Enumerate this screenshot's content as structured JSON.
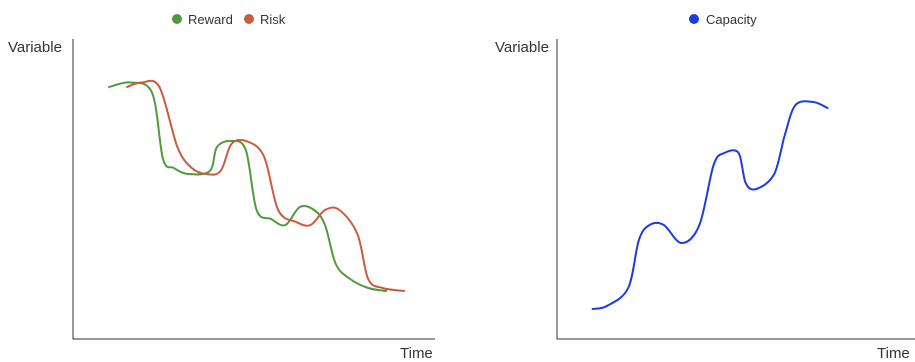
{
  "chart_data": [
    {
      "type": "line",
      "xlabel": "Time",
      "ylabel": "Variable",
      "legend": "top",
      "grid": false,
      "xlim": [
        0,
        100
      ],
      "ylim": [
        0,
        100
      ],
      "series": [
        {
          "name": "Reward",
          "color": "#4e9b3d",
          "points": [
            [
              10,
              84
            ],
            [
              16,
              85.5
            ],
            [
              22,
              82
            ],
            [
              25,
              60
            ],
            [
              28,
              57
            ],
            [
              32,
              55
            ],
            [
              38,
              56
            ],
            [
              40,
              64
            ],
            [
              44,
              66
            ],
            [
              48,
              63
            ],
            [
              51,
              43
            ],
            [
              55,
              40
            ],
            [
              59,
              38
            ],
            [
              63,
              44
            ],
            [
              67,
              43
            ],
            [
              70,
              38
            ],
            [
              73,
              25
            ],
            [
              77,
              20
            ],
            [
              82,
              17
            ],
            [
              87,
              16
            ]
          ]
        },
        {
          "name": "Risk",
          "color": "#cc5a40",
          "points": [
            [
              15,
              84
            ],
            [
              19,
              85.5
            ],
            [
              24,
              84
            ],
            [
              29,
              64
            ],
            [
              33,
              57
            ],
            [
              37,
              55
            ],
            [
              41,
              56
            ],
            [
              44,
              65
            ],
            [
              48,
              66
            ],
            [
              53,
              61
            ],
            [
              57,
              43
            ],
            [
              62,
              39
            ],
            [
              66,
              38
            ],
            [
              70,
              43
            ],
            [
              74,
              43
            ],
            [
              79,
              35
            ],
            [
              82,
              20
            ],
            [
              86,
              17
            ],
            [
              92,
              16
            ]
          ]
        }
      ]
    },
    {
      "type": "line",
      "xlabel": "Time",
      "ylabel": "Variable",
      "legend": "top",
      "grid": false,
      "xlim": [
        0,
        100
      ],
      "ylim": [
        0,
        100
      ],
      "series": [
        {
          "name": "Capacity",
          "color": "#1c3be6",
          "points": [
            [
              10,
              10
            ],
            [
              14,
              11
            ],
            [
              20,
              17
            ],
            [
              23,
              33
            ],
            [
              26,
              38
            ],
            [
              30,
              38
            ],
            [
              35,
              32
            ],
            [
              40,
              38
            ],
            [
              44,
              58
            ],
            [
              47,
              62
            ],
            [
              51,
              62
            ],
            [
              53,
              52
            ],
            [
              56,
              50
            ],
            [
              61,
              55
            ],
            [
              64,
              68
            ],
            [
              67,
              78
            ],
            [
              72,
              79
            ],
            [
              76,
              77
            ]
          ]
        }
      ]
    }
  ]
}
